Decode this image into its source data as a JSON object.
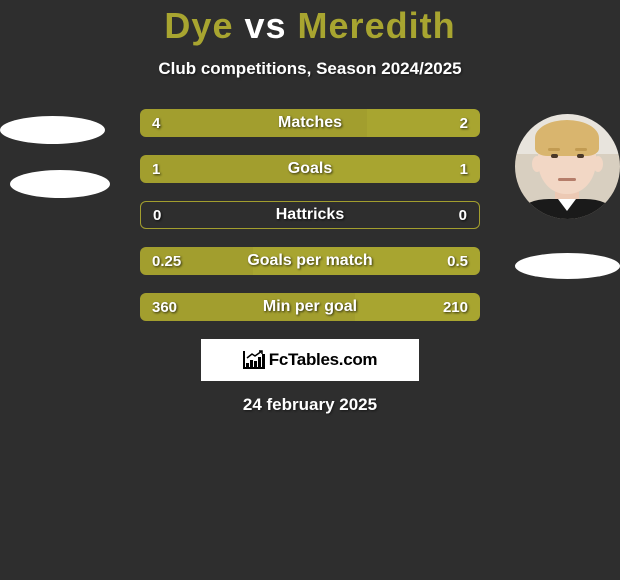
{
  "title": {
    "player1": "Dye",
    "vs": "vs",
    "player2": "Meredith"
  },
  "subtitle": "Club competitions, Season 2024/2025",
  "colors": {
    "bar_left": "#a29e2e",
    "bar_right": "#a8a530",
    "background": "#2e2e2e",
    "text": "#ffffff"
  },
  "stats": [
    {
      "label": "Matches",
      "left_val": "4",
      "right_val": "2",
      "left_pct": 66.7,
      "right_pct": 33.3
    },
    {
      "label": "Goals",
      "left_val": "1",
      "right_val": "1",
      "left_pct": 50,
      "right_pct": 50
    },
    {
      "label": "Hattricks",
      "left_val": "0",
      "right_val": "0",
      "left_pct": 50,
      "right_pct": 50,
      "empty": true
    },
    {
      "label": "Goals per match",
      "left_val": "0.25",
      "right_val": "0.5",
      "left_pct": 33.3,
      "right_pct": 66.7
    },
    {
      "label": "Min per goal",
      "left_val": "360",
      "right_val": "210",
      "left_pct": 63.2,
      "right_pct": 36.8
    }
  ],
  "logo": "FcTables.com",
  "date": "24 february 2025"
}
